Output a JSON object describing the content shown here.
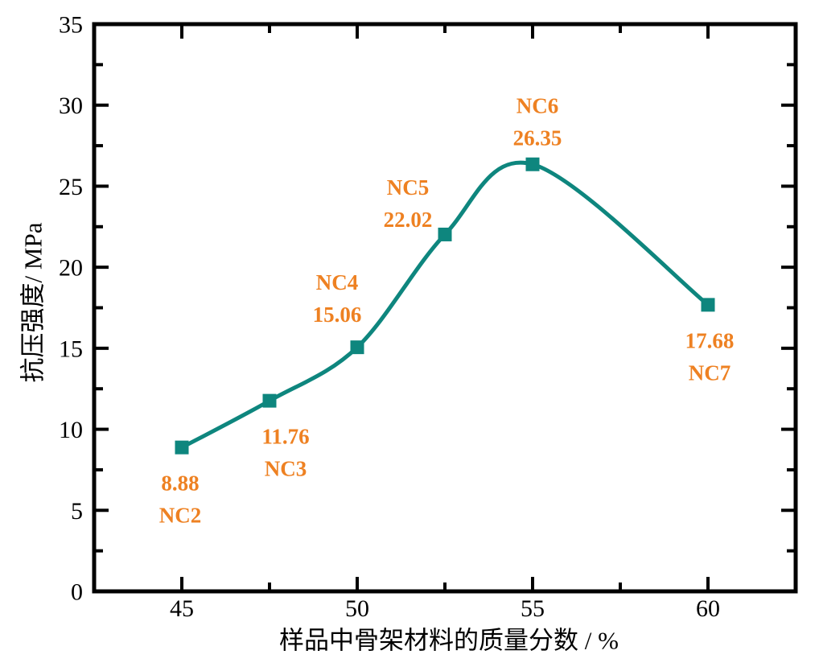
{
  "page": {
    "background": "#ffffff"
  },
  "chart_data": {
    "type": "line",
    "title": "",
    "xlabel": "样品中骨架材料的质量分数 / %",
    "ylabel": "抗压强度/ MPa",
    "x_range": [
      42.5,
      62.5
    ],
    "y_range": [
      0,
      35
    ],
    "x_major_ticks": [
      45,
      50,
      55,
      60
    ],
    "x_minor_ticks": [
      47.5,
      52.5,
      57.5
    ],
    "y_major_ticks": [
      0,
      5,
      10,
      15,
      20,
      25,
      30,
      35
    ],
    "y_minor_ticks": [
      2.5,
      7.5,
      12.5,
      17.5,
      22.5,
      27.5,
      32.5
    ],
    "grid": false,
    "frame": true,
    "legend": "none",
    "axis_color": "#000000",
    "label_color": "#ee8122",
    "label_line_spacing": 40,
    "series": [
      {
        "name": "compressive-strength",
        "color": "#0e867e",
        "marker": "square",
        "smooth": true,
        "points": [
          {
            "sample": "NC2",
            "x": 45,
            "y": 8.88,
            "label_lines": [
              "8.88",
              "NC2"
            ],
            "label_dx": -2,
            "label_dy": 44
          },
          {
            "sample": "NC3",
            "x": 47.5,
            "y": 11.76,
            "label_lines": [
              "11.76",
              "NC3"
            ],
            "label_dx": 20,
            "label_dy": 44
          },
          {
            "sample": "NC4",
            "x": 50,
            "y": 15.06,
            "label_lines": [
              "NC4",
              "15.06"
            ],
            "label_dx": -25,
            "label_dy": -81
          },
          {
            "sample": "NC5",
            "x": 52.5,
            "y": 22.02,
            "label_lines": [
              "NC5",
              "22.02"
            ],
            "label_dx": -46,
            "label_dy": -59
          },
          {
            "sample": "NC6",
            "x": 55,
            "y": 26.35,
            "label_lines": [
              "NC6",
              "26.35"
            ],
            "label_dx": 6,
            "label_dy": -73
          },
          {
            "sample": "NC7",
            "x": 60,
            "y": 17.68,
            "label_lines": [
              "17.68",
              "NC7"
            ],
            "label_dx": 2,
            "label_dy": 44
          }
        ]
      }
    ]
  }
}
